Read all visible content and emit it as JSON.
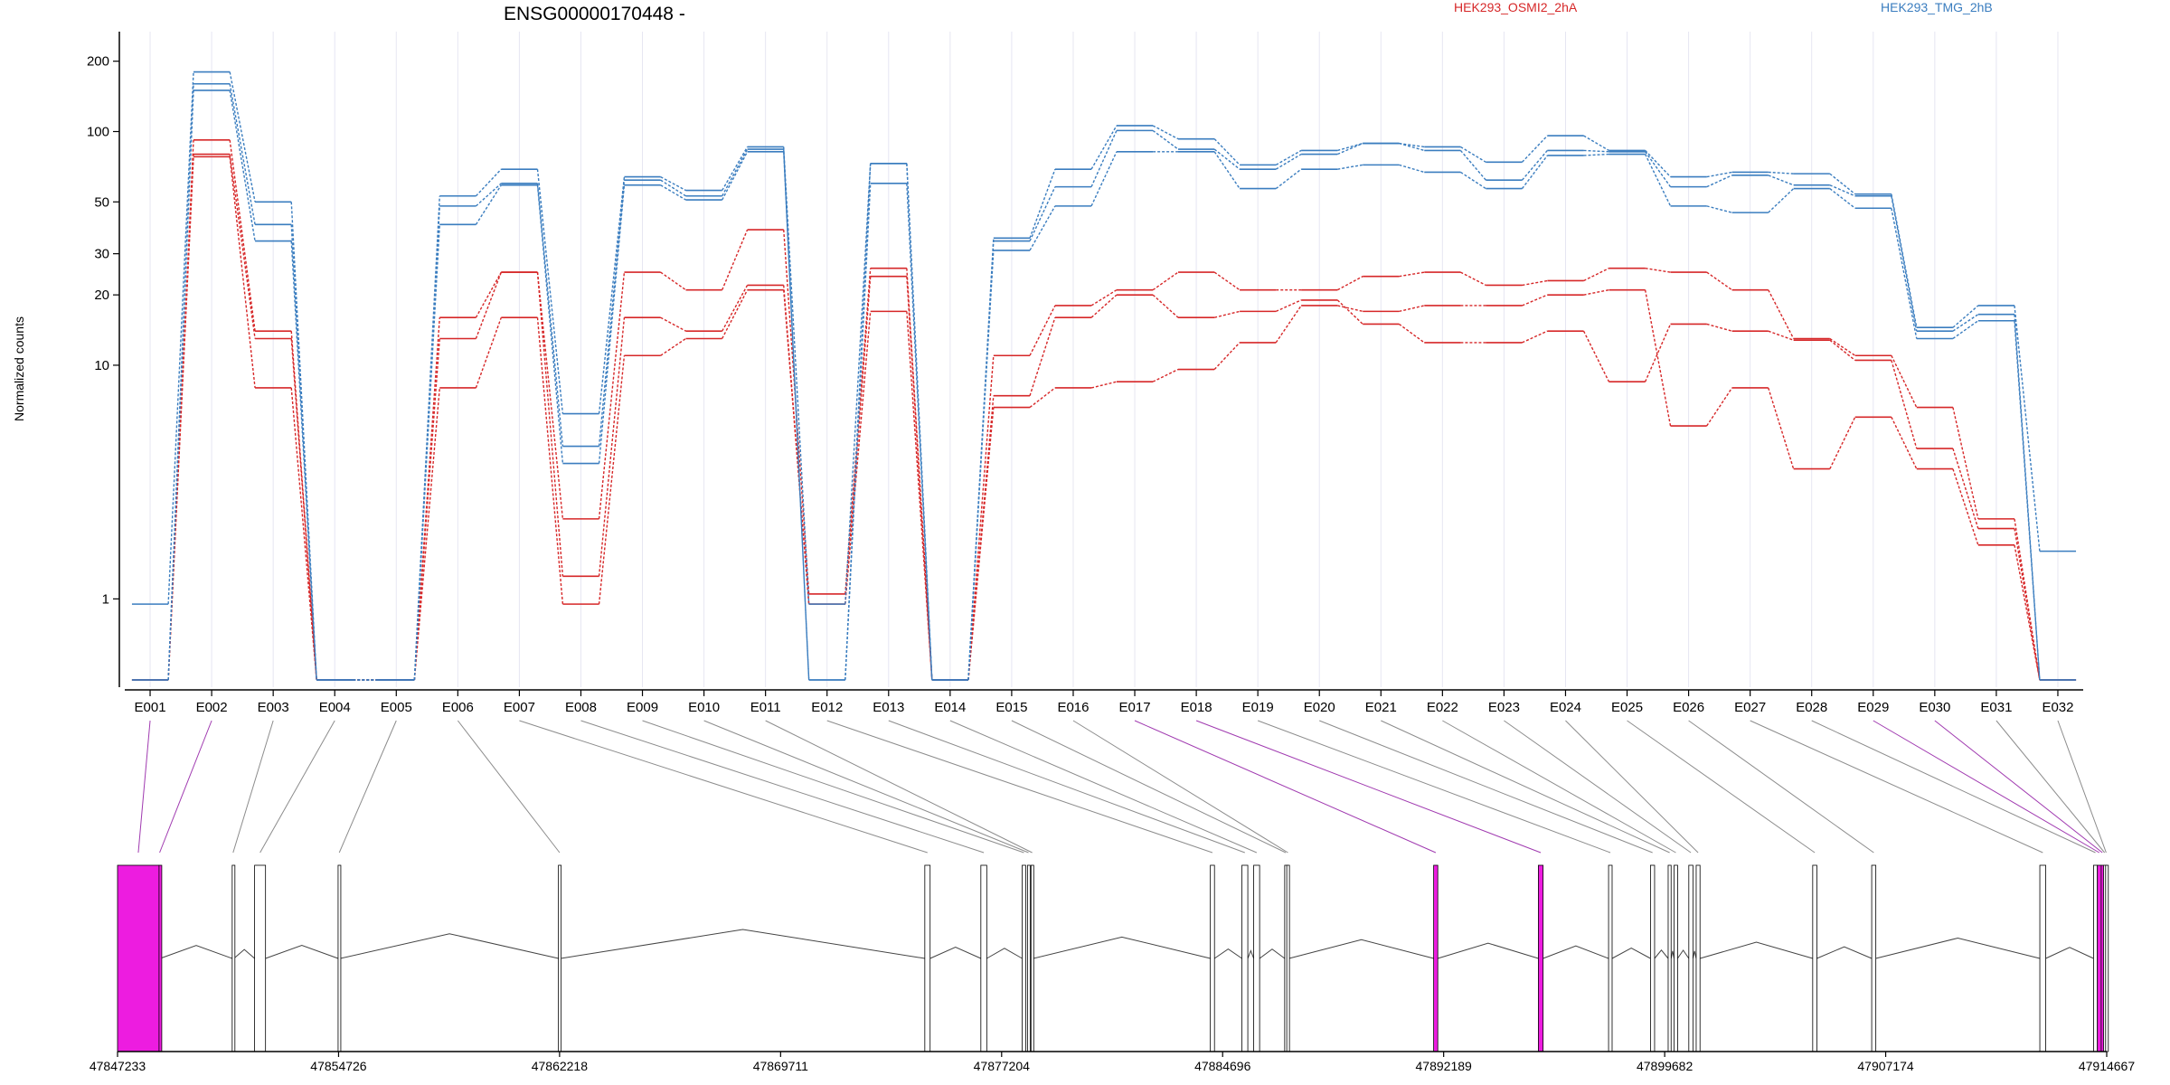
{
  "chart_data": {
    "type": "line",
    "title": "ENSG00000170448 -",
    "ylabel": "Normalized counts",
    "xlabel": "",
    "yscale": "log",
    "ylim": [
      0.45,
      220
    ],
    "yticks": [
      "200",
      "100",
      "50",
      "30",
      "20",
      "10",
      "1"
    ],
    "categories": [
      "E001",
      "E002",
      "E003",
      "E004",
      "E005",
      "E006",
      "E007",
      "E008",
      "E009",
      "E010",
      "E011",
      "E012",
      "E013",
      "E014",
      "E015",
      "E016",
      "E017",
      "E018",
      "E019",
      "E020",
      "E021",
      "E022",
      "E023",
      "E024",
      "E025",
      "E026",
      "E027",
      "E028",
      "E029",
      "E030",
      "E031",
      "E032"
    ],
    "legend": [
      {
        "label": "HEK293_OSMI2_2hA",
        "color": "#d62728"
      },
      {
        "label": "HEK293_TMG_2hB",
        "color": "#3a7dbf"
      }
    ],
    "series": [
      {
        "group": 0,
        "values": [
          0.45,
          92,
          14,
          0.45,
          0.45,
          16,
          25,
          2.2,
          25,
          21,
          38,
          1.05,
          26,
          0.45,
          11,
          18,
          21,
          25,
          21,
          21,
          24,
          25,
          22,
          23,
          26,
          25,
          21,
          13,
          11,
          6.6,
          2.2,
          0.45
        ]
      },
      {
        "group": 0,
        "values": [
          0.45,
          80,
          13,
          0.45,
          0.45,
          13,
          25,
          1.25,
          16,
          14,
          22,
          0.95,
          24,
          0.45,
          7.4,
          16,
          20,
          16,
          17,
          19,
          15,
          12.5,
          12.5,
          14,
          8.5,
          15,
          14,
          12.8,
          10.5,
          4.4,
          2.0,
          0.45
        ]
      },
      {
        "group": 0,
        "values": [
          0.45,
          78,
          8,
          0.45,
          0.45,
          8,
          16,
          0.95,
          11,
          13,
          21,
          0.95,
          17,
          0.45,
          6.6,
          8,
          8.5,
          9.6,
          12.5,
          18,
          17,
          18,
          18,
          20,
          21,
          5.5,
          8,
          3.6,
          6,
          3.6,
          1.7,
          0.45
        ]
      },
      {
        "group": 1,
        "values": [
          0.95,
          180,
          50,
          0.45,
          0.45,
          53,
          69,
          6.2,
          64,
          56,
          86,
          0.95,
          73,
          0.45,
          35,
          69,
          106,
          93,
          72,
          83,
          89,
          86,
          74,
          96,
          83,
          64,
          67,
          66,
          54,
          14.5,
          18,
          1.6
        ]
      },
      {
        "group": 1,
        "values": [
          0.45,
          160,
          40,
          0.45,
          0.45,
          48,
          60,
          4.5,
          62,
          53,
          84,
          0.45,
          60,
          0.45,
          34,
          58,
          101,
          84,
          69,
          80,
          89,
          83,
          62,
          83,
          82,
          58,
          65,
          59,
          53,
          14,
          16.5,
          0.45
        ]
      },
      {
        "group": 1,
        "values": [
          0.45,
          150,
          34,
          0.45,
          0.45,
          40,
          59,
          3.8,
          59,
          51,
          82,
          0.45,
          73,
          0.45,
          31,
          48,
          82,
          82,
          57,
          69,
          72,
          67,
          57,
          79,
          80,
          48,
          45,
          57,
          47,
          13,
          15.5,
          0.45
        ]
      }
    ],
    "genomic_ticks": [
      "47847233",
      "47854726",
      "47862218",
      "47869711",
      "47877204",
      "47884696",
      "47892189",
      "47899682",
      "47907174",
      "47914667"
    ],
    "exon_colors": [
      "#ed1ce0",
      "#ed1ce0",
      "#ffffff",
      "#ffffff",
      "#ffffff",
      "#ffffff",
      "#ffffff",
      "#ffffff",
      "#ffffff",
      "#ffffff",
      "#ffffff",
      "#ffffff",
      "#ffffff",
      "#ffffff",
      "#ffffff",
      "#ffffff",
      "#ed1ce0",
      "#ed1ce0",
      "#ffffff",
      "#ffffff",
      "#ffffff",
      "#ffffff",
      "#ffffff",
      "#ffffff",
      "#ffffff",
      "#ffffff",
      "#ffffff",
      "#ffffff",
      "#ed1ce0",
      "#ed1ce0",
      "#ffffff",
      "#ffffff"
    ]
  }
}
